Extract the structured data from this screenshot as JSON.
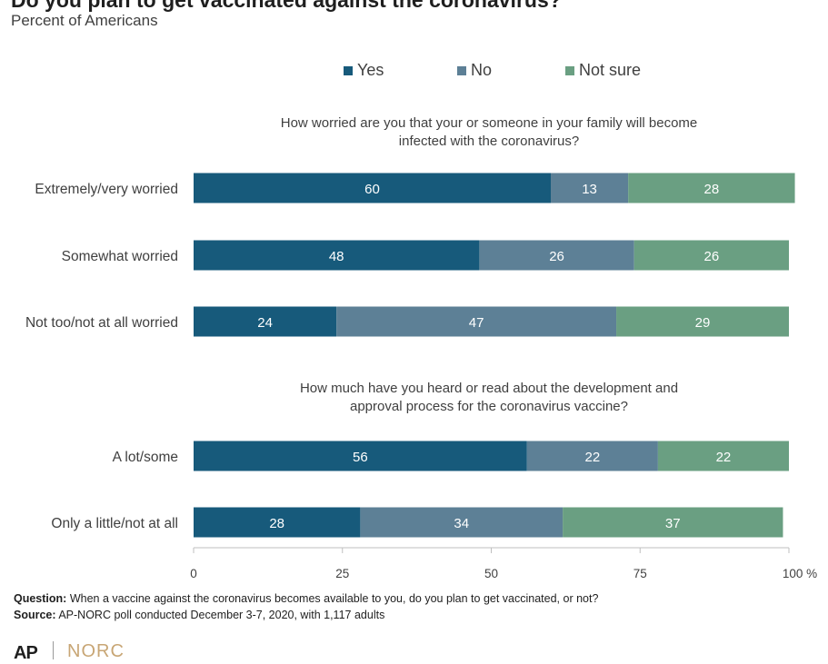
{
  "header": {
    "title": "Do you plan to get vaccinated against the coronavirus?",
    "subtitle": "Percent of Americans"
  },
  "colors": {
    "yes": "#175a7b",
    "no": "#5d8096",
    "not_sure": "#6a9f82",
    "text": "#404040",
    "axis": "#bfbfbf"
  },
  "chart_data": {
    "type": "bar",
    "orientation": "horizontal",
    "stacked": true,
    "title": "Do you plan to get vaccinated against the coronavirus?",
    "subtitle": "Percent of Americans",
    "legend": {
      "placement": "top",
      "entries": [
        "Yes",
        "No",
        "Not sure"
      ]
    },
    "xlim": [
      0,
      100
    ],
    "xticks": [
      "0",
      "25",
      "50",
      "75",
      "100 %"
    ],
    "grid": false,
    "groups": [
      {
        "title_lines": [
          "How worried are you that your or someone in your family will become",
          "infected with the coronavirus?"
        ],
        "categories": [
          "Extremely/very worried",
          "Somewhat worried",
          "Not too/not at all worried"
        ]
      },
      {
        "title_lines": [
          "How much have you heard or read about the development  and",
          "approval process  for the coronavirus vaccine?"
        ],
        "categories": [
          "A lot/some",
          "Only a little/not at all"
        ]
      }
    ],
    "categories": [
      "Extremely/very worried",
      "Somewhat worried",
      "Not too/not at all worried",
      "A lot/some",
      "Only a little/not at all"
    ],
    "series": [
      {
        "name": "Yes",
        "values": [
          60,
          48,
          24,
          56,
          28
        ]
      },
      {
        "name": "No",
        "values": [
          13,
          26,
          47,
          22,
          34
        ]
      },
      {
        "name": "Not sure",
        "values": [
          28,
          26,
          29,
          22,
          37
        ]
      }
    ]
  },
  "footer": {
    "question_label": "Question:",
    "question_text": " When a vaccine against the coronavirus becomes available to you, do you plan to get vaccinated, or not?",
    "source_label": "Source:",
    "source_text": " AP-NORC poll conducted December 3-7, 2020,  with 1,117 adults"
  },
  "logos": {
    "ap": "AP",
    "norc": "NORC"
  }
}
